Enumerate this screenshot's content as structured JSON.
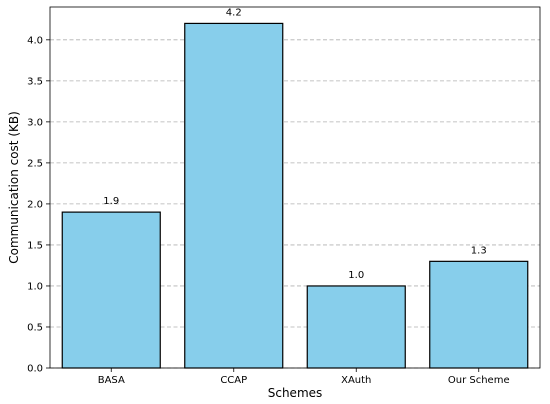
{
  "chart_data": {
    "type": "bar",
    "title": "",
    "xlabel": "Schemes",
    "ylabel": "Communication cost (KB)",
    "categories": [
      "BASA",
      "CCAP",
      "XAuth",
      "Our Scheme"
    ],
    "values": [
      1.9,
      4.2,
      1.0,
      1.3
    ],
    "data_labels": [
      "1.9",
      "4.2",
      "1.0",
      "1.3"
    ],
    "ylim": [
      0,
      4.4
    ],
    "yticks": [
      0.0,
      0.5,
      1.0,
      1.5,
      2.0,
      2.5,
      3.0,
      3.5,
      4.0
    ],
    "ytick_labels": [
      "0.0",
      "0.5",
      "1.0",
      "1.5",
      "2.0",
      "2.5",
      "3.0",
      "3.5",
      "4.0"
    ],
    "grid": "y-dashed",
    "legend": "none",
    "colors": {
      "bar_fill": "#87ceeb",
      "bar_edge": "#000000",
      "grid": "#b0b0b0",
      "axis": "#000000"
    }
  }
}
